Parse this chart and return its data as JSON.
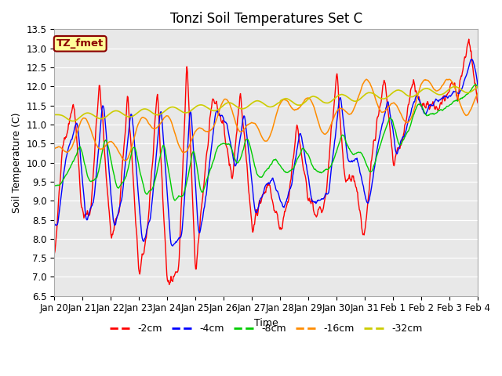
{
  "title": "Tonzi Soil Temperatures Set C",
  "xlabel": "Time",
  "ylabel": "Soil Temperature (C)",
  "ylim": [
    6.5,
    13.5
  ],
  "yticks": [
    6.5,
    7.0,
    7.5,
    8.0,
    8.5,
    9.0,
    9.5,
    10.0,
    10.5,
    11.0,
    11.5,
    12.0,
    12.5,
    13.0,
    13.5
  ],
  "xtick_labels": [
    "Jan 20",
    "Jan 21",
    "Jan 22",
    "Jan 23",
    "Jan 24",
    "Jan 25",
    "Jan 26",
    "Jan 27",
    "Jan 28",
    "Jan 29",
    "Jan 30",
    "Jan 31",
    "Feb 1",
    "Feb 2",
    "Feb 3",
    "Feb 4"
  ],
  "n_days": 16,
  "pts_per_day": 48,
  "annotation_text": "TZ_fmet",
  "annotation_bg": "#FFFF99",
  "annotation_border": "#8B0000",
  "line_colors": [
    "#FF0000",
    "#0000FF",
    "#00CC00",
    "#FF8C00",
    "#CCCC00"
  ],
  "line_labels": [
    "-2cm",
    "-4cm",
    "-8cm",
    "-16cm",
    "-32cm"
  ],
  "plot_bg": "#E8E8E8",
  "grid_color": "#FFFFFF",
  "title_fontsize": 12,
  "axis_fontsize": 9,
  "tick_fontsize": 8.5
}
